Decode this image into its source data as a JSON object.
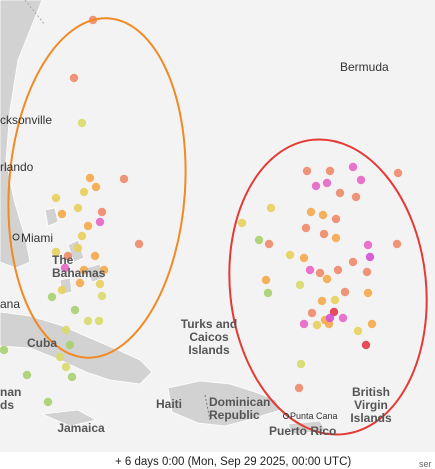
{
  "labels": {
    "bermuda": "Bermuda",
    "jacksonville": "cksonville",
    "orlando": "rlando",
    "miami": "Miami",
    "bahamas": [
      "The",
      "Bahamas"
    ],
    "havana": "ana",
    "cuba": "Cuba",
    "turks": [
      "Turks and",
      "Caicos",
      "Islands"
    ],
    "cayman": [
      "nan",
      "ds"
    ],
    "haiti": "Haiti",
    "dominican": [
      "Dominican",
      "Republic"
    ],
    "punta_cana": "Punta Cana",
    "puerto_rico": "Puerto Rico",
    "bvi": [
      "British",
      "Virgin",
      "Islands"
    ],
    "jamaica": "Jamaica"
  },
  "footer": {
    "time": "+ 6 days 0:00  (Mon, Sep 29 2025, 00:00 UTC)",
    "cut": "ser"
  }
}
